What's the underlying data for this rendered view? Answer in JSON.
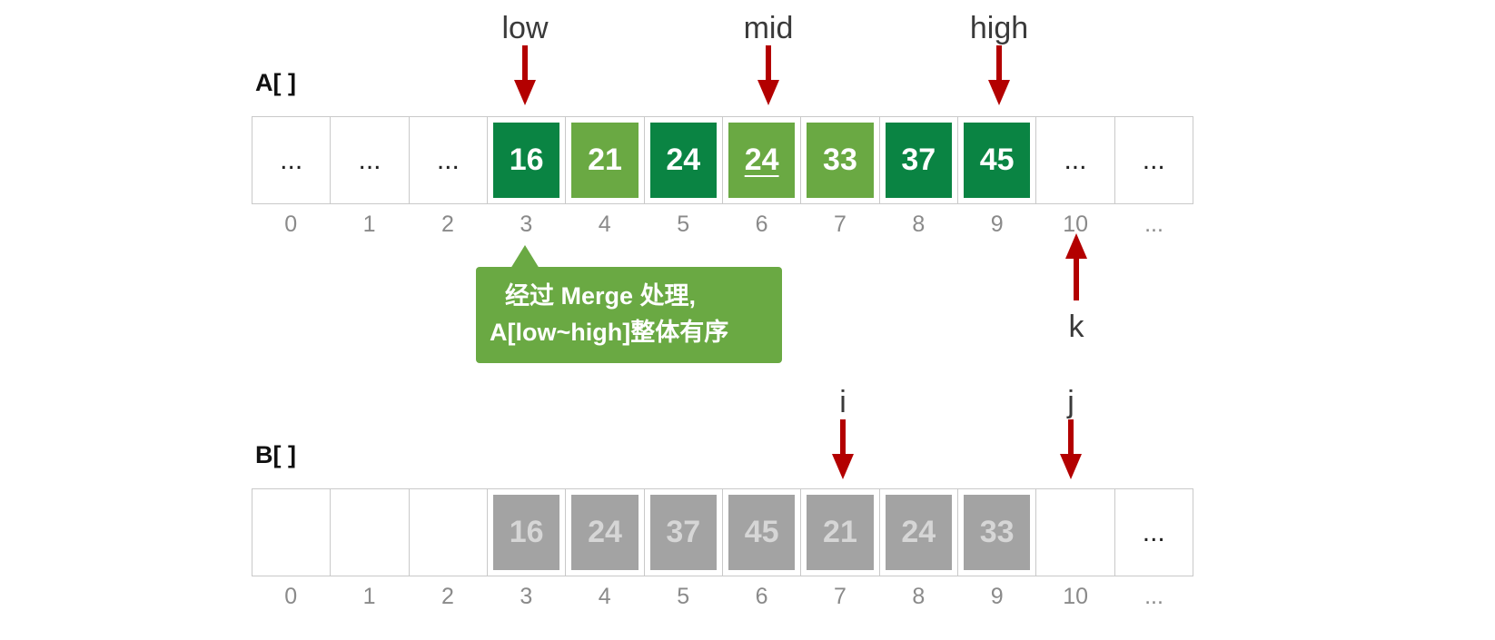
{
  "array_a": {
    "label": "A[ ]",
    "cells": [
      {
        "text": "...",
        "style": "empty"
      },
      {
        "text": "...",
        "style": "empty"
      },
      {
        "text": "...",
        "style": "empty"
      },
      {
        "text": "16",
        "style": "dark"
      },
      {
        "text": "21",
        "style": "light"
      },
      {
        "text": "24",
        "style": "dark"
      },
      {
        "text": "24",
        "style": "light",
        "underlined": true
      },
      {
        "text": "33",
        "style": "light"
      },
      {
        "text": "37",
        "style": "dark"
      },
      {
        "text": "45",
        "style": "dark"
      },
      {
        "text": "...",
        "style": "empty"
      },
      {
        "text": "...",
        "style": "empty"
      }
    ],
    "indices": [
      "0",
      "1",
      "2",
      "3",
      "4",
      "5",
      "6",
      "7",
      "8",
      "9",
      "10",
      "..."
    ]
  },
  "array_b": {
    "label": "B[ ]",
    "cells": [
      {
        "text": "",
        "style": "empty"
      },
      {
        "text": "",
        "style": "empty"
      },
      {
        "text": "",
        "style": "empty"
      },
      {
        "text": "16",
        "style": "grey"
      },
      {
        "text": "24",
        "style": "grey"
      },
      {
        "text": "37",
        "style": "grey"
      },
      {
        "text": "45",
        "style": "grey"
      },
      {
        "text": "21",
        "style": "grey"
      },
      {
        "text": "24",
        "style": "grey"
      },
      {
        "text": "33",
        "style": "grey"
      },
      {
        "text": "",
        "style": "empty"
      },
      {
        "text": "...",
        "style": "empty"
      }
    ],
    "indices": [
      "0",
      "1",
      "2",
      "3",
      "4",
      "5",
      "6",
      "7",
      "8",
      "9",
      "10",
      "..."
    ]
  },
  "pointers": {
    "low": {
      "label": "low",
      "index": 3
    },
    "mid": {
      "label": "mid",
      "index": 6
    },
    "high": {
      "label": "high",
      "index": 9
    },
    "k": {
      "label": "k",
      "index": 10
    },
    "i": {
      "label": "i",
      "index": 7
    },
    "j": {
      "label": "j",
      "index": 10
    }
  },
  "callout": {
    "line1": "经过 Merge 处理,",
    "line2": "A[low~high]整体有序"
  },
  "colors": {
    "dark_green": "#0a8443",
    "light_green": "#6aa943",
    "grey": "#a3a3a3",
    "arrow_red": "#b30000"
  }
}
